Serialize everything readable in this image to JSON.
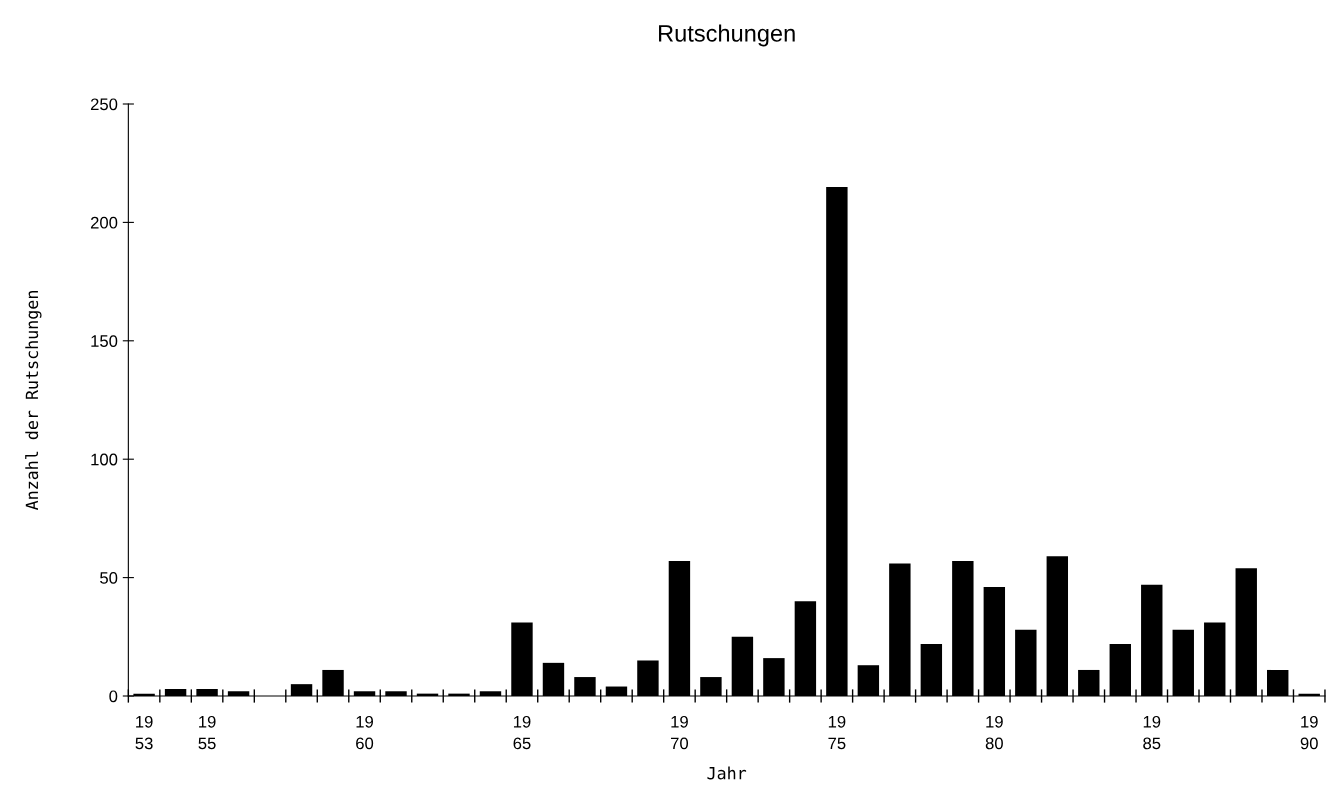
{
  "chart_data": {
    "type": "bar",
    "title": "Rutschungen",
    "xlabel": "Jahr",
    "ylabel": "Anzahl der Rutschungen",
    "categories": [
      "19\n53",
      null,
      "19\n55",
      null,
      null,
      null,
      null,
      "19\n60",
      null,
      null,
      null,
      null,
      "19\n65",
      null,
      null,
      null,
      null,
      "19\n70",
      null,
      null,
      null,
      null,
      "19\n75",
      null,
      null,
      null,
      null,
      "19\n80",
      null,
      null,
      null,
      null,
      "19\n85",
      null,
      null,
      null,
      null,
      "19\n90"
    ],
    "values": [
      1,
      3,
      3,
      2,
      0,
      5,
      11,
      2,
      2,
      1,
      1,
      2,
      31,
      14,
      8,
      4,
      15,
      57,
      8,
      25,
      16,
      40,
      215,
      13,
      56,
      22,
      57,
      46,
      28,
      59,
      11,
      22,
      47,
      28,
      31,
      54,
      11,
      1
    ],
    "color": "#000000",
    "ylim": [
      0,
      250
    ],
    "yticks": [
      0,
      50,
      100,
      150,
      200,
      250
    ],
    "grid": false
  }
}
